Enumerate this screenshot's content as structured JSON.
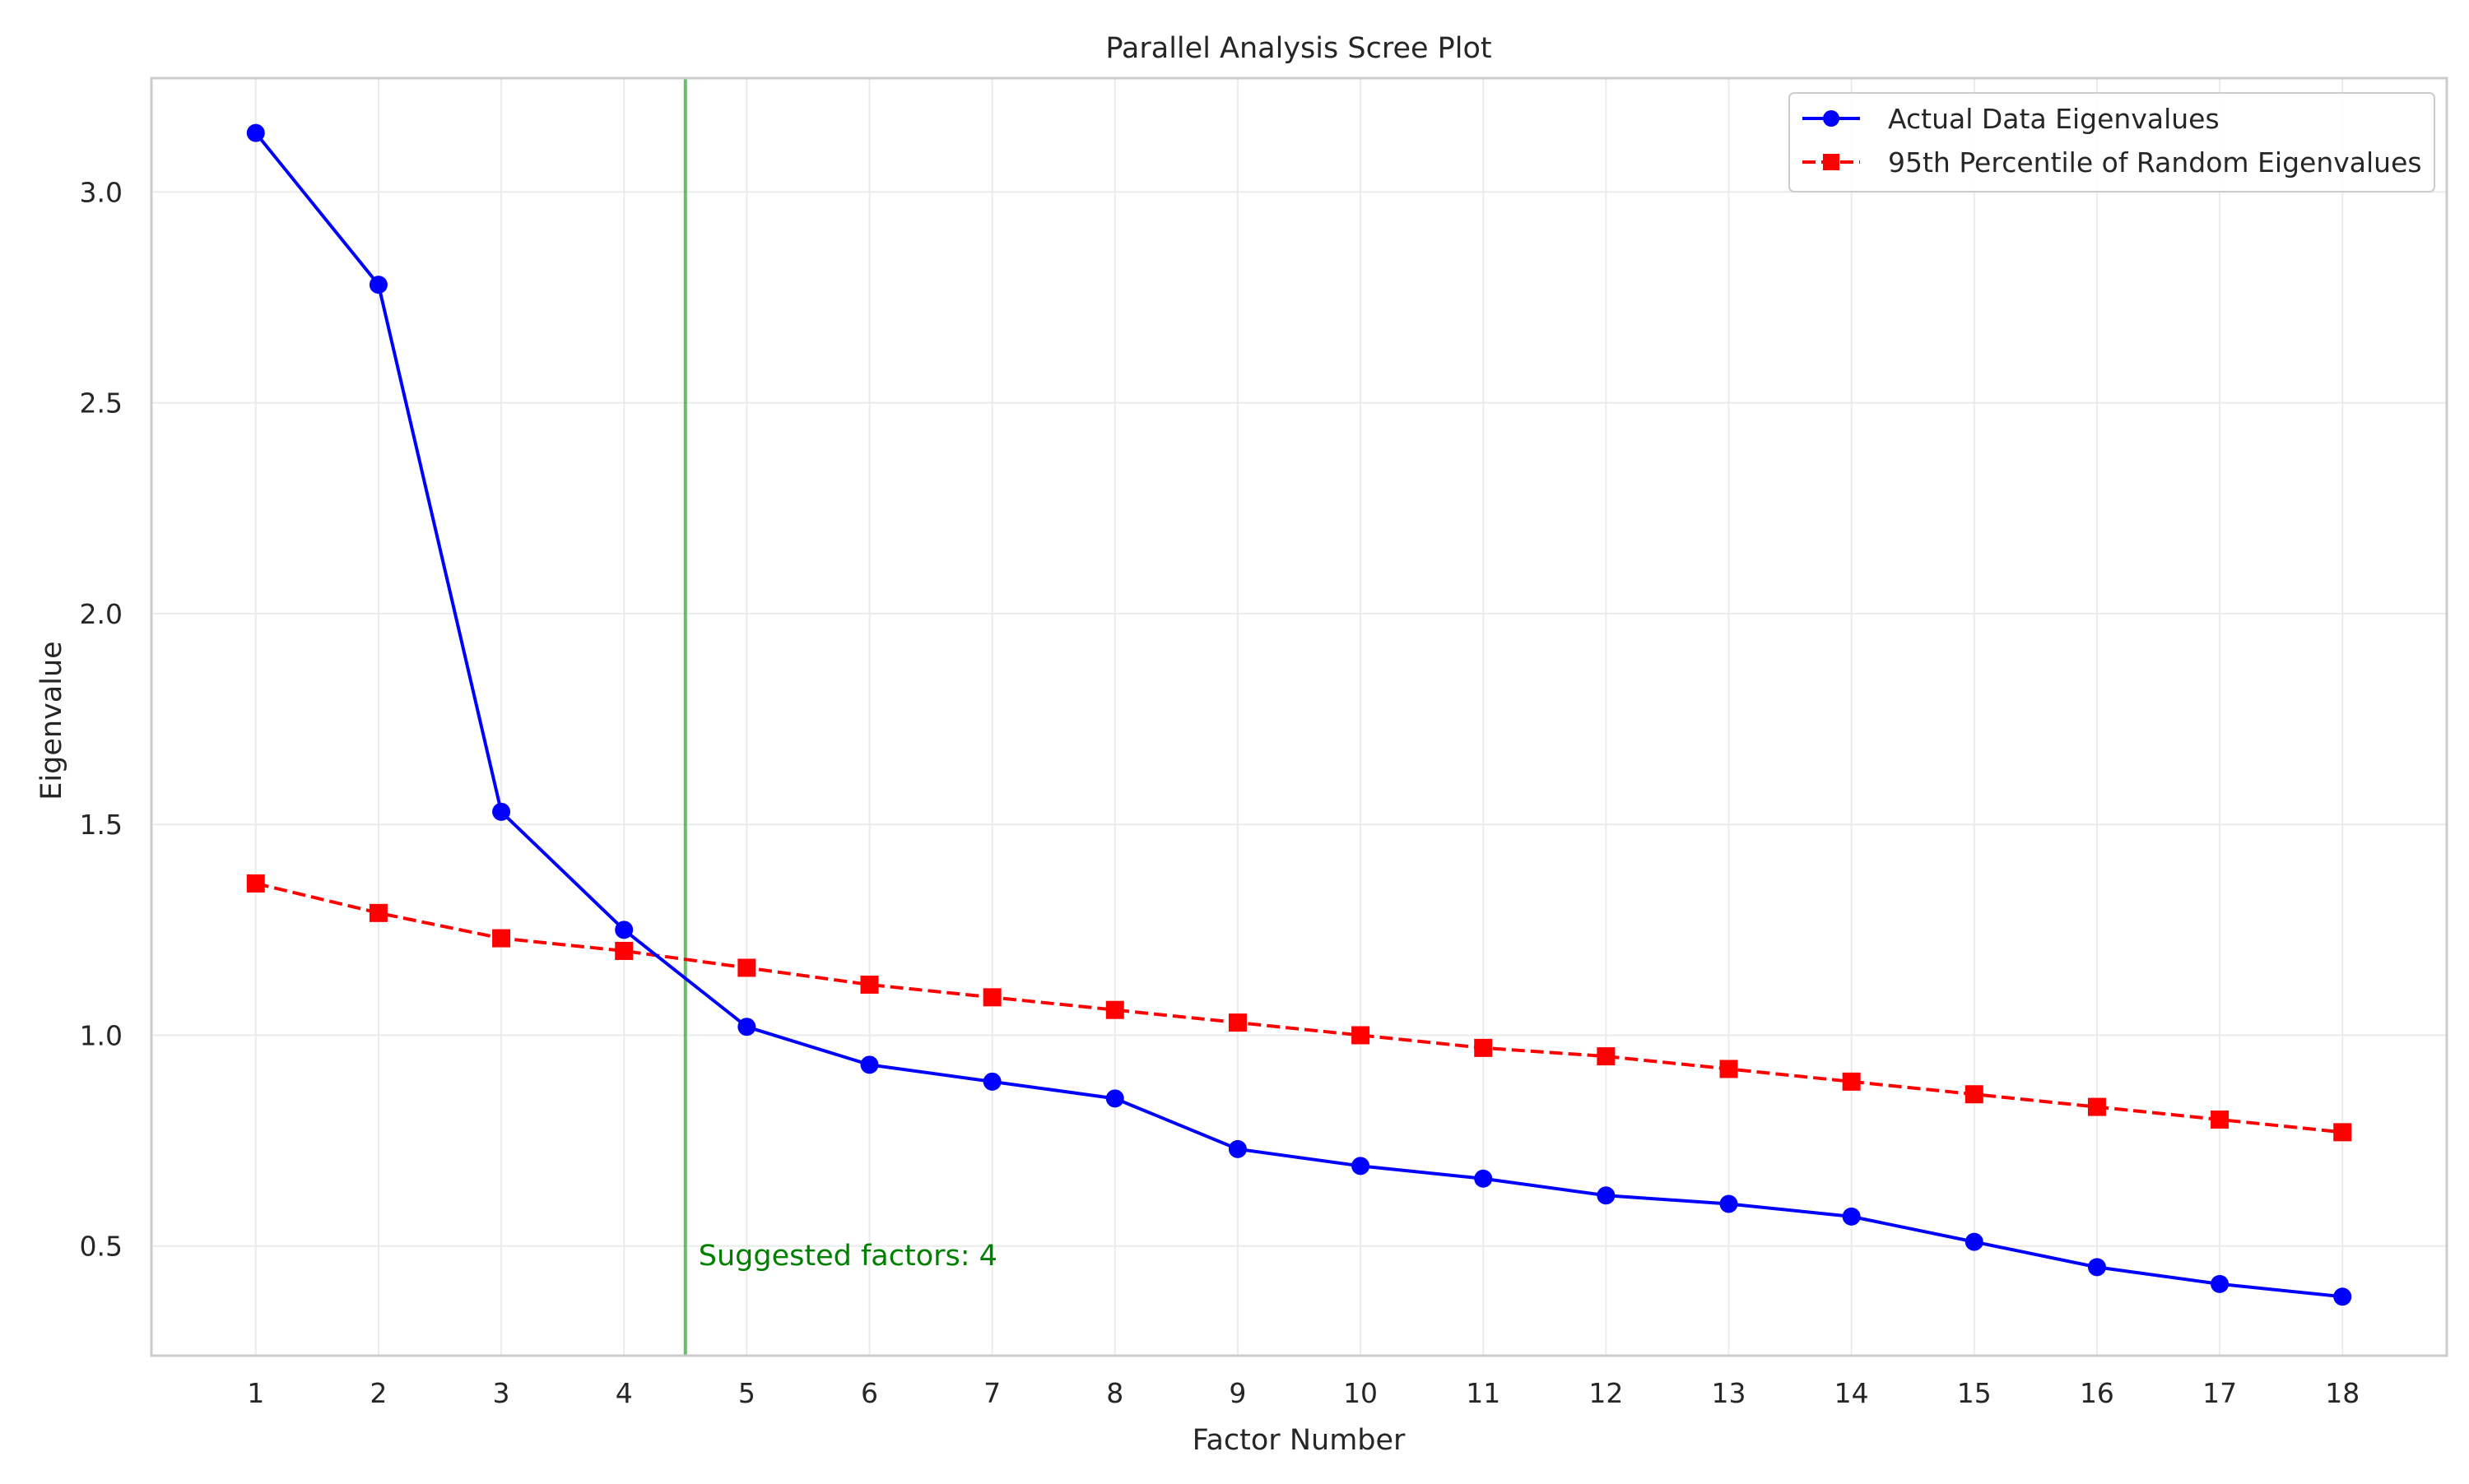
{
  "chart_data": {
    "type": "line",
    "title": "Parallel Analysis Scree Plot",
    "xlabel": "Factor Number",
    "ylabel": "Eigenvalue",
    "x": [
      1,
      2,
      3,
      4,
      5,
      6,
      7,
      8,
      9,
      10,
      11,
      12,
      13,
      14,
      15,
      16,
      17,
      18
    ],
    "x_tick_labels": [
      "1",
      "2",
      "3",
      "4",
      "5",
      "6",
      "7",
      "8",
      "9",
      "10",
      "11",
      "12",
      "13",
      "14",
      "15",
      "16",
      "17",
      "18"
    ],
    "y_tick_values": [
      0.5,
      1.0,
      1.5,
      2.0,
      2.5,
      3.0
    ],
    "y_tick_labels": [
      "0.5",
      "1.0",
      "1.5",
      "2.0",
      "2.5",
      "3.0"
    ],
    "xlim": [
      0.15,
      18.85
    ],
    "ylim": [
      0.24,
      3.27
    ],
    "grid": true,
    "legend_position": "top-right",
    "series": [
      {
        "name": "Actual Data Eigenvalues",
        "color": "#0000ff",
        "marker": "circle",
        "linestyle": "solid",
        "values": [
          3.14,
          2.78,
          1.53,
          1.25,
          1.02,
          0.93,
          0.89,
          0.85,
          0.73,
          0.69,
          0.66,
          0.62,
          0.6,
          0.57,
          0.51,
          0.45,
          0.41,
          0.38
        ]
      },
      {
        "name": "95th Percentile of Random Eigenvalues",
        "color": "#ff0000",
        "marker": "square",
        "linestyle": "dashed",
        "values": [
          1.36,
          1.29,
          1.23,
          1.2,
          1.16,
          1.12,
          1.09,
          1.06,
          1.03,
          1.0,
          0.97,
          0.95,
          0.92,
          0.89,
          0.86,
          0.83,
          0.8,
          0.77
        ]
      }
    ],
    "annotations": {
      "vline_x": 4.5,
      "vline_color": "#2ca02c",
      "text": "Suggested factors: 4",
      "text_color": "#008000"
    }
  }
}
